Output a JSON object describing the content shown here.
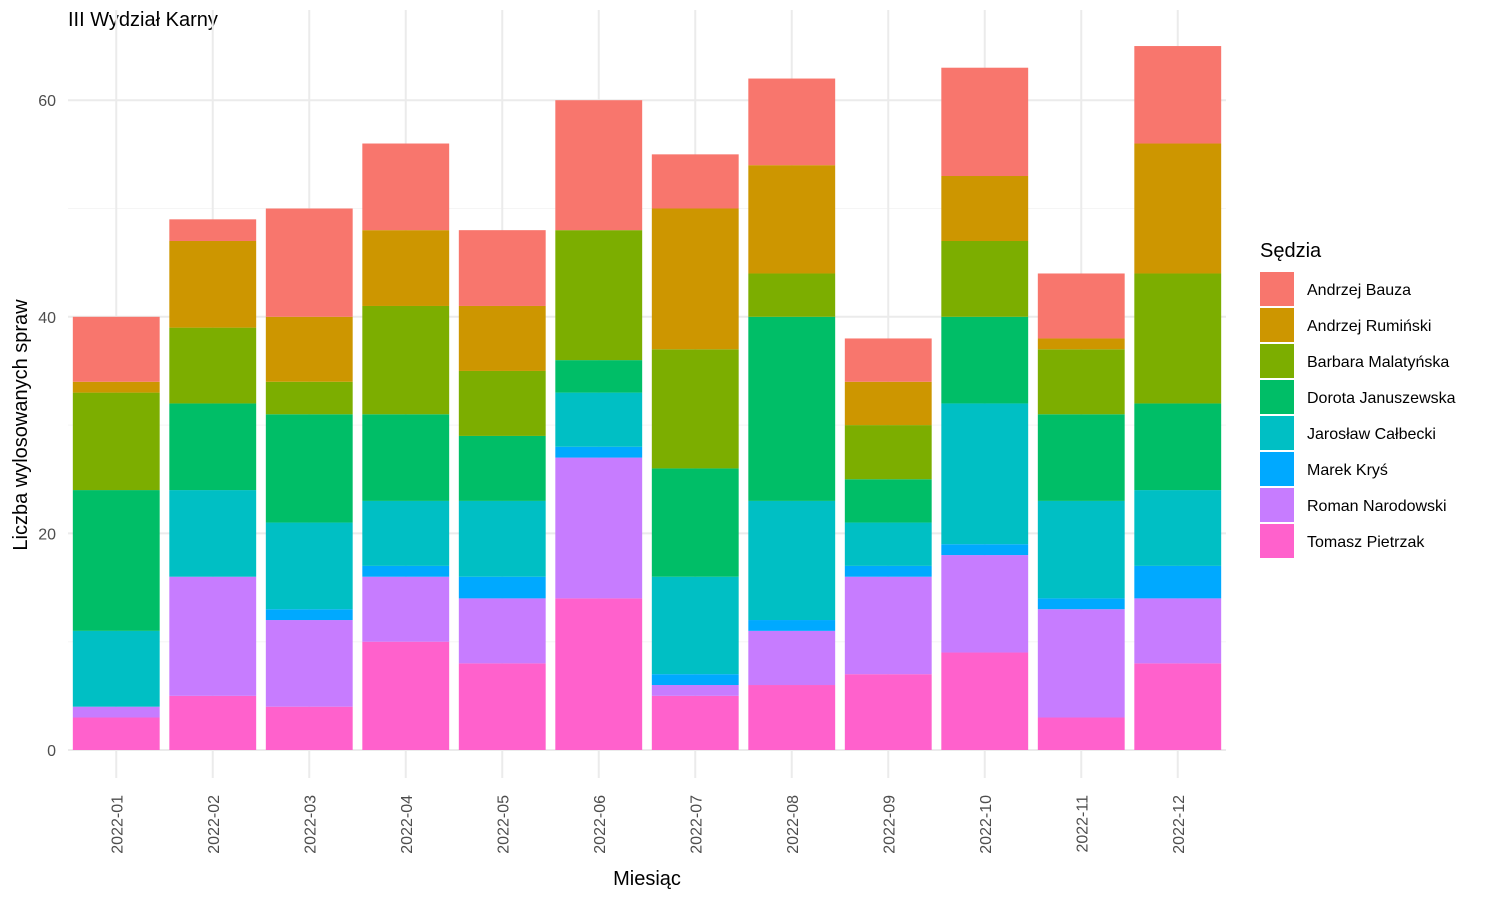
{
  "chart_data": {
    "type": "bar",
    "stacked": true,
    "title": "III Wydział Karny",
    "xlabel": "Miesiąc",
    "ylabel": "Liczba wylosowanych spraw",
    "ylim": [
      0,
      65
    ],
    "yticks": [
      0,
      20,
      40,
      60
    ],
    "grid": true,
    "legend_position": "right",
    "legend_title": "Sędzia",
    "categories": [
      "2022-01",
      "2022-02",
      "2022-03",
      "2022-04",
      "2022-05",
      "2022-06",
      "2022-07",
      "2022-08",
      "2022-09",
      "2022-10",
      "2022-11",
      "2022-12"
    ],
    "series": [
      {
        "name": "Andrzej Bauza",
        "color": "#F8766D",
        "values": [
          6,
          2,
          10,
          8,
          7,
          12,
          5,
          8,
          4,
          10,
          6,
          9
        ]
      },
      {
        "name": "Andrzej Rumiński",
        "color": "#CD9600",
        "values": [
          1,
          8,
          6,
          7,
          6,
          0,
          13,
          10,
          4,
          6,
          1,
          12
        ]
      },
      {
        "name": "Barbara Malatyńska",
        "color": "#7CAE00",
        "values": [
          9,
          7,
          3,
          10,
          6,
          12,
          11,
          4,
          5,
          7,
          6,
          12
        ]
      },
      {
        "name": "Dorota Januszewska",
        "color": "#00BE67",
        "values": [
          13,
          8,
          10,
          8,
          6,
          3,
          10,
          17,
          4,
          8,
          8,
          8
        ]
      },
      {
        "name": "Jarosław Całbecki",
        "color": "#00BFC4",
        "values": [
          7,
          8,
          8,
          6,
          7,
          5,
          9,
          11,
          4,
          13,
          9,
          7
        ]
      },
      {
        "name": "Marek Kryś",
        "color": "#00A9FF",
        "values": [
          0,
          0,
          1,
          1,
          2,
          1,
          1,
          1,
          1,
          1,
          1,
          3
        ]
      },
      {
        "name": "Roman Narodowski",
        "color": "#C77CFF",
        "values": [
          1,
          11,
          8,
          6,
          6,
          13,
          1,
          5,
          9,
          9,
          10,
          6
        ]
      },
      {
        "name": "Tomasz Pietrzak",
        "color": "#FF61CC",
        "values": [
          3,
          5,
          4,
          10,
          8,
          14,
          5,
          6,
          7,
          9,
          3,
          8
        ]
      }
    ]
  }
}
